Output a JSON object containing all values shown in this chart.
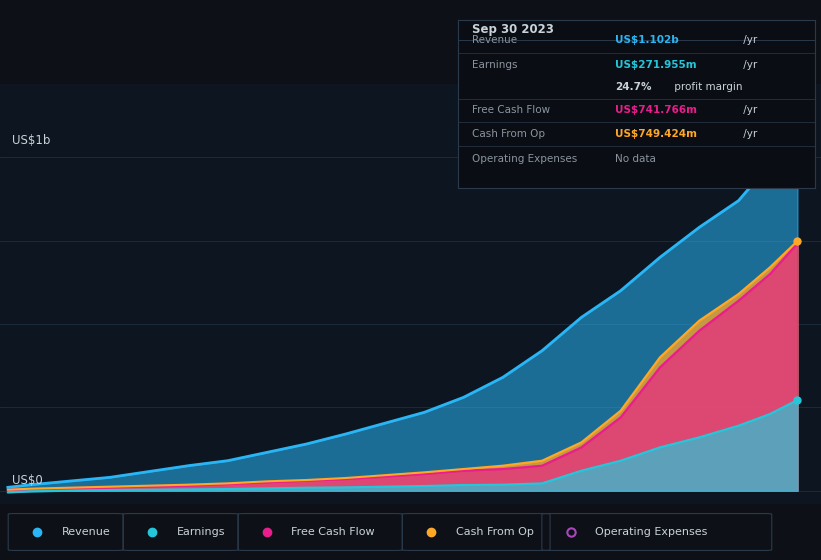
{
  "bg_color": "#0d1117",
  "plot_bg_color": "#0d1520",
  "grid_color": "#1e2d3d",
  "text_color": "#c9d1d9",
  "dim_text_color": "#8b949e",
  "years": [
    2013.7,
    2014.0,
    2015.0,
    2016.0,
    2016.5,
    2017.0,
    2017.5,
    2018.0,
    2019.0,
    2019.5,
    2020.0,
    2020.5,
    2021.0,
    2021.5,
    2022.0,
    2022.5,
    2023.0,
    2023.4,
    2023.75
  ],
  "revenue": [
    0.01,
    0.018,
    0.04,
    0.075,
    0.09,
    0.115,
    0.14,
    0.17,
    0.235,
    0.28,
    0.34,
    0.42,
    0.52,
    0.6,
    0.7,
    0.79,
    0.87,
    0.98,
    1.102
  ],
  "earnings": [
    -0.005,
    -0.002,
    0.002,
    0.004,
    0.005,
    0.007,
    0.009,
    0.01,
    0.014,
    0.017,
    0.018,
    0.022,
    0.06,
    0.09,
    0.13,
    0.16,
    0.195,
    0.23,
    0.272
  ],
  "free_cash_flow": [
    0.003,
    0.005,
    0.01,
    0.015,
    0.02,
    0.025,
    0.03,
    0.035,
    0.05,
    0.06,
    0.065,
    0.075,
    0.13,
    0.22,
    0.37,
    0.48,
    0.57,
    0.65,
    0.742
  ],
  "cash_from_op": [
    0.003,
    0.006,
    0.012,
    0.018,
    0.022,
    0.028,
    0.032,
    0.038,
    0.055,
    0.065,
    0.075,
    0.09,
    0.145,
    0.24,
    0.4,
    0.51,
    0.59,
    0.67,
    0.749
  ],
  "revenue_color": "#29b6f6",
  "earnings_color": "#26c6da",
  "free_cash_flow_color": "#e91e8c",
  "cash_from_op_color": "#ffa726",
  "op_expenses_color": "#ab47bc",
  "ylabel": "US$1b",
  "y0label": "US$0",
  "info_box": {
    "date": "Sep 30 2023",
    "revenue_label": "Revenue",
    "revenue_value": "US$1.102b",
    "revenue_suffix": " /yr",
    "earnings_label": "Earnings",
    "earnings_value": "US$271.955m",
    "earnings_suffix": " /yr",
    "margin_value": "24.7%",
    "margin_suffix": " profit margin",
    "fcf_label": "Free Cash Flow",
    "fcf_value": "US$741.766m",
    "fcf_suffix": " /yr",
    "cop_label": "Cash From Op",
    "cop_value": "US$749.424m",
    "cop_suffix": " /yr",
    "opex_label": "Operating Expenses",
    "opex_value": "No data"
  },
  "legend_entries": [
    {
      "label": "Revenue",
      "color": "#29b6f6",
      "filled": true
    },
    {
      "label": "Earnings",
      "color": "#26c6da",
      "filled": true
    },
    {
      "label": "Free Cash Flow",
      "color": "#e91e8c",
      "filled": true
    },
    {
      "label": "Cash From Op",
      "color": "#ffa726",
      "filled": true
    },
    {
      "label": "Operating Expenses",
      "color": "#ab47bc",
      "filled": false
    }
  ]
}
